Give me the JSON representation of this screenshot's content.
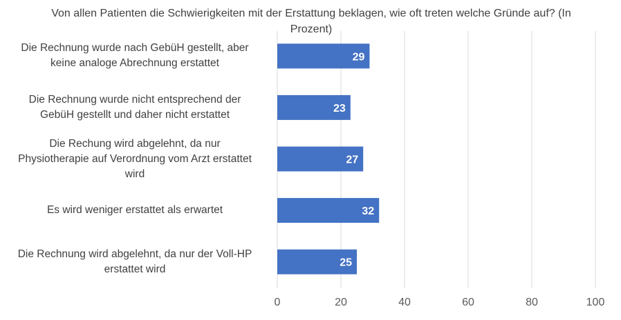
{
  "chart_data": {
    "type": "bar",
    "orientation": "horizontal",
    "title": "Von allen Patienten die Schwierigkeiten mit der Erstattung beklagen, wie oft treten welche Gründe auf? (In Prozent)",
    "categories": [
      "Die Rechnung wurde nach GebüH gestellt, aber\nkeine analoge Abrechnung erstattet",
      "Die Rechnung wurde nicht entsprechend der\nGebüH gestellt und daher nicht erstattet",
      "Die Rechung wird abgelehnt, da nur\nPhysiotherapie auf Verordnung vom Arzt erstattet\nwird",
      "Es wird weniger erstattet als erwartet",
      "Die Rechnung wird abgelehnt, da nur der Voll-HP\nerstattet wird"
    ],
    "values": [
      29,
      23,
      27,
      32,
      25
    ],
    "xlim": [
      0,
      100
    ],
    "xticks": [
      "0",
      "20",
      "40",
      "60",
      "80",
      "100"
    ],
    "grid": true,
    "data_labels": true,
    "bar_color": "#4472C4",
    "grid_color": "#D9D9D9"
  }
}
